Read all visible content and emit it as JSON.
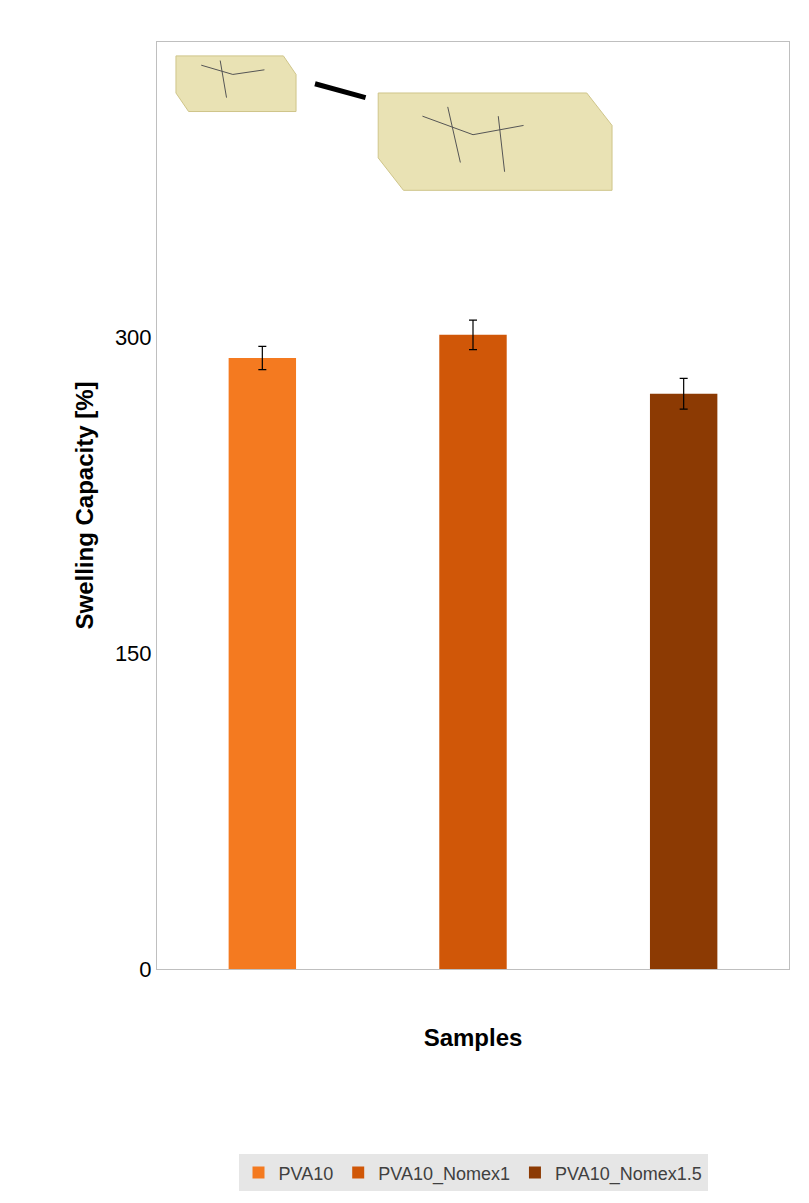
{
  "chart_data": {
    "type": "bar",
    "x_label": "Samples",
    "y_label": "Swelling Capacity [%]",
    "categories": [
      null,
      null,
      null
    ],
    "series": [
      {
        "name": "PVA10",
        "color": "#f47a20",
        "values": [
          290,
          null,
          null
        ],
        "errors": [
          5.5,
          null,
          null
        ]
      },
      {
        "name": "PVA10_Nomex1",
        "color": "#d05708",
        "values": [
          null,
          301,
          null
        ],
        "errors": [
          null,
          7,
          null
        ]
      },
      {
        "name": "PVA10_Nomex1.5",
        "color": "#8c3a03",
        "values": [
          null,
          null,
          273
        ],
        "errors": [
          null,
          null,
          7.3
        ]
      }
    ],
    "ylim": [
      0,
      440
    ],
    "yticks": [
      0,
      150,
      300
    ],
    "grid": false,
    "legend": "bottom",
    "tick_labels": "y"
  }
}
